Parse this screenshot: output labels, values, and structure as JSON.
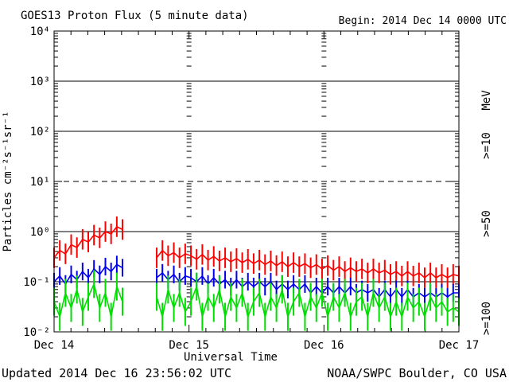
{
  "footer": {
    "updated": "Updated 2014 Dec 16 23:56:02 UTC",
    "source": "NOAA/SWPC Boulder, CO USA"
  },
  "chart_data": {
    "type": "line",
    "title": "GOES13 Proton Flux (5 minute data)",
    "begin_annotation": "Begin: 2014 Dec 14 0000 UTC",
    "xlabel": "Universal Time",
    "ylabel": "Particles cm⁻²s⁻¹sr⁻¹",
    "unit_label": "MeV",
    "y_scale": "log10",
    "ylim": [
      0.01,
      10000
    ],
    "y_tick_exponents": [
      4,
      3,
      2,
      1,
      0,
      -1,
      -2
    ],
    "y_tick_labels": [
      "10⁴",
      "10³",
      "10²",
      "10¹",
      "10⁰",
      "10⁻¹",
      "10⁻²"
    ],
    "solid_gridlines_at": [
      1000,
      100,
      1,
      0.1
    ],
    "dashed_gridlines_at": [
      10
    ],
    "grid_day_dash_columns_hours": [
      24,
      48
    ],
    "xlim_hours": [
      0,
      72
    ],
    "x_axis_start": "2014 Dec 14 0000 UTC",
    "x_minor_tick_interval_hours": 3,
    "x_ticks": [
      {
        "hour": 0,
        "label": "Dec 14"
      },
      {
        "hour": 24,
        "label": "Dec 15"
      },
      {
        "hour": 48,
        "label": "Dec 16"
      },
      {
        "hour": 72,
        "label": "Dec 17"
      }
    ],
    "data_gap_hours": [
      12.6,
      17.7
    ],
    "sample_interval_hours": 1,
    "series": [
      {
        "label": ">=10",
        "unit": "MeV",
        "color": "#ff0000",
        "scatter_band_factor": 1.6,
        "values": [
          0.3,
          0.42,
          0.36,
          0.55,
          0.48,
          0.7,
          0.62,
          0.85,
          0.75,
          1.0,
          0.9,
          1.25,
          1.1,
          null,
          null,
          null,
          null,
          null,
          0.3,
          0.42,
          0.33,
          0.38,
          0.3,
          0.36,
          0.33,
          0.28,
          0.35,
          0.27,
          0.32,
          0.26,
          0.3,
          0.25,
          0.29,
          0.24,
          0.28,
          0.23,
          0.27,
          0.22,
          0.26,
          0.21,
          0.25,
          0.2,
          0.24,
          0.2,
          0.23,
          0.19,
          0.22,
          0.18,
          0.21,
          0.17,
          0.2,
          0.16,
          0.19,
          0.16,
          0.18,
          0.15,
          0.18,
          0.15,
          0.17,
          0.14,
          0.16,
          0.13,
          0.16,
          0.13,
          0.15,
          0.12,
          0.15,
          0.12,
          0.14,
          0.12,
          0.14,
          0.13
        ]
      },
      {
        "label": ">=50",
        "unit": "MeV",
        "color": "#0000ee",
        "scatter_band_factor": 1.5,
        "values": [
          0.1,
          0.13,
          0.09,
          0.14,
          0.11,
          0.16,
          0.12,
          0.18,
          0.14,
          0.2,
          0.16,
          0.22,
          0.19,
          null,
          null,
          null,
          null,
          null,
          0.12,
          0.15,
          0.11,
          0.14,
          0.1,
          0.13,
          0.12,
          0.1,
          0.13,
          0.09,
          0.12,
          0.09,
          0.11,
          0.08,
          0.11,
          0.08,
          0.1,
          0.08,
          0.1,
          0.08,
          0.1,
          0.07,
          0.09,
          0.07,
          0.09,
          0.07,
          0.09,
          0.06,
          0.08,
          0.06,
          0.08,
          0.06,
          0.08,
          0.06,
          0.08,
          0.06,
          0.07,
          0.06,
          0.07,
          0.05,
          0.07,
          0.05,
          0.07,
          0.05,
          0.07,
          0.05,
          0.06,
          0.05,
          0.06,
          0.05,
          0.06,
          0.05,
          0.06,
          0.06
        ]
      },
      {
        "label": ">=100",
        "unit": "MeV",
        "color": "#00dd00",
        "scatter_band_factor": 1.9,
        "values": [
          0.04,
          0.02,
          0.06,
          0.03,
          0.07,
          0.025,
          0.05,
          0.09,
          0.03,
          0.06,
          0.02,
          0.08,
          0.04,
          null,
          null,
          null,
          null,
          null,
          0.05,
          0.02,
          0.07,
          0.03,
          0.06,
          0.025,
          0.04,
          0.08,
          0.02,
          0.05,
          0.03,
          0.07,
          0.02,
          0.05,
          0.03,
          0.06,
          0.02,
          0.04,
          0.06,
          0.02,
          0.05,
          0.03,
          0.07,
          0.02,
          0.04,
          0.06,
          0.02,
          0.05,
          0.03,
          0.06,
          0.02,
          0.05,
          0.03,
          0.06,
          0.02,
          0.04,
          0.05,
          0.02,
          0.06,
          0.03,
          0.05,
          0.02,
          0.04,
          0.02,
          0.05,
          0.03,
          0.04,
          0.02,
          0.05,
          0.03,
          0.04,
          0.025,
          0.03,
          0.025
        ]
      }
    ],
    "legend_position": "right-outside-rotated"
  }
}
